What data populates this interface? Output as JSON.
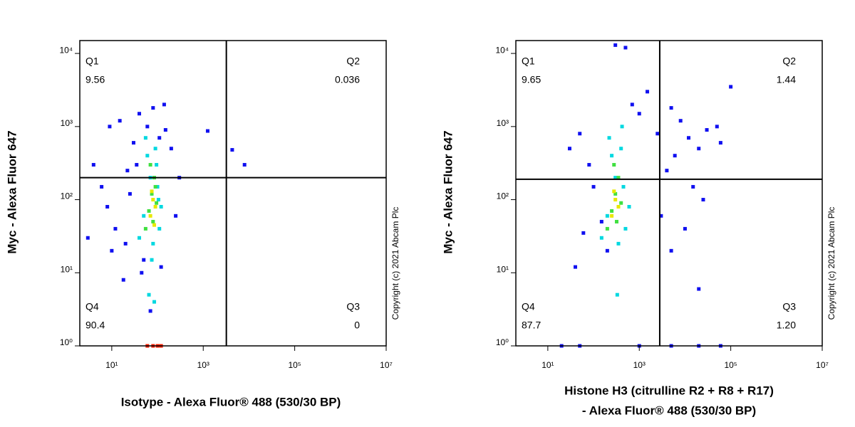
{
  "chart_data": [
    {
      "type": "scatter",
      "x_scale": "log",
      "y_scale": "log",
      "ylabel": "Myc - Alexa Fluor 647",
      "xlabel": [
        "Isotype - Alexa Fluor® 488 (530/30 BP)"
      ],
      "copyright": "Copyright (c) 2021 Abcam Plc",
      "xlim": [
        2,
        10000000
      ],
      "ylim": [
        1,
        15000
      ],
      "xticks": [
        {
          "value": 10,
          "label": "10¹"
        },
        {
          "value": 1000,
          "label": "10³"
        },
        {
          "value": 100000,
          "label": "10⁵"
        },
        {
          "value": 10000000,
          "label": "10⁷"
        }
      ],
      "yticks": [
        {
          "value": 1,
          "label": "10⁰"
        },
        {
          "value": 10,
          "label": "10¹"
        },
        {
          "value": 100,
          "label": "10²"
        },
        {
          "value": 1000,
          "label": "10³"
        },
        {
          "value": 10000,
          "label": "10⁴"
        }
      ],
      "gates": {
        "x": 3200,
        "y": 200,
        "labels": [
          "Q1",
          "Q2",
          "Q3",
          "Q4"
        ],
        "values": [
          9.56,
          0.036,
          0,
          90.4
        ],
        "value_labels": [
          "9.56",
          "0.036",
          "0",
          "90.4"
        ]
      },
      "series": [
        {
          "color": "#1010f0",
          "x": [
            4,
            6,
            8,
            12,
            20,
            30,
            15,
            40,
            60,
            150,
            200,
            300,
            10,
            25,
            9,
            50,
            120,
            250,
            18,
            80,
            35,
            110,
            4300,
            8000,
            1250,
            45,
            70,
            3,
            140,
            22
          ],
          "y": [
            300,
            150,
            80,
            40,
            25,
            600,
            1200,
            1500,
            1000,
            900,
            500,
            200,
            20,
            120,
            1000,
            15,
            12,
            60,
            8,
            1800,
            300,
            700,
            480,
            300,
            870,
            10,
            3,
            30,
            2000,
            250
          ]
        },
        {
          "color": "#00d8e0",
          "x": [
            40,
            50,
            60,
            70,
            80,
            90,
            100,
            110,
            120,
            55,
            75,
            95,
            65,
            85,
            105
          ],
          "y": [
            30,
            60,
            400,
            200,
            25,
            500,
            150,
            40,
            80,
            700,
            15,
            300,
            5,
            4,
            100
          ]
        },
        {
          "color": "#40e040",
          "x": [
            55,
            65,
            75,
            85,
            95,
            70,
            80,
            90
          ],
          "y": [
            40,
            70,
            120,
            200,
            90,
            300,
            50,
            150
          ]
        },
        {
          "color": "#e8e800",
          "x": [
            70,
            80,
            90,
            75,
            85
          ],
          "y": [
            60,
            100,
            80,
            130,
            45
          ]
        },
        {
          "color": "#ff2000",
          "x": [
            60,
            80,
            100,
            120
          ],
          "y": [
            1,
            1,
            1,
            1
          ]
        }
      ]
    },
    {
      "type": "scatter",
      "x_scale": "log",
      "y_scale": "log",
      "ylabel": "Myc - Alexa Fluor 647",
      "xlabel": [
        "Histone H3 (citrulline R2 + R8 + R17)",
        "- Alexa Fluor® 488 (530/30 BP)"
      ],
      "copyright": "Copyright (c) 2021 Abcam Plc",
      "xlim": [
        2,
        10000000
      ],
      "ylim": [
        1,
        15000
      ],
      "xticks": [
        {
          "value": 10,
          "label": "10¹"
        },
        {
          "value": 1000,
          "label": "10³"
        },
        {
          "value": 100000,
          "label": "10⁵"
        },
        {
          "value": 10000000,
          "label": "10⁷"
        }
      ],
      "yticks": [
        {
          "value": 1,
          "label": "10⁰"
        },
        {
          "value": 10,
          "label": "10¹"
        },
        {
          "value": 100,
          "label": "10²"
        },
        {
          "value": 1000,
          "label": "10³"
        },
        {
          "value": 10000,
          "label": "10⁴"
        }
      ],
      "gates": {
        "x": 2800,
        "y": 190,
        "labels": [
          "Q1",
          "Q2",
          "Q3",
          "Q4"
        ],
        "values": [
          9.65,
          1.44,
          1.2,
          87.7
        ],
        "value_labels": [
          "9.65",
          "1.44",
          "1.20",
          "87.7"
        ]
      },
      "series": [
        {
          "color": "#1010f0",
          "x": [
            30,
            50,
            80,
            100,
            150,
            200,
            700,
            1000,
            1500,
            5000,
            8000,
            12000,
            20000,
            30000,
            50000,
            60000,
            100000,
            4000,
            6000,
            15000,
            3000,
            5000,
            20000,
            40,
            60,
            300,
            500,
            2500,
            10000,
            25000
          ],
          "y": [
            500,
            800,
            300,
            150,
            50,
            20,
            2000,
            1500,
            3000,
            1800,
            1200,
            700,
            500,
            900,
            1000,
            600,
            3500,
            250,
            400,
            150,
            60,
            20,
            6,
            12,
            35,
            13000,
            12000,
            800,
            40,
            100
          ]
        },
        {
          "color": "#1010f0",
          "x": [
            20,
            50,
            1000,
            5000,
            20000,
            60000
          ],
          "y": [
            1,
            1,
            1,
            1,
            1,
            1
          ]
        },
        {
          "color": "#00d8e0",
          "x": [
            150,
            200,
            250,
            300,
            350,
            400,
            450,
            500,
            600,
            220,
            330,
            420
          ],
          "y": [
            30,
            60,
            400,
            200,
            25,
            500,
            150,
            40,
            80,
            700,
            5,
            1000
          ]
        },
        {
          "color": "#40e040",
          "x": [
            200,
            250,
            300,
            350,
            400,
            280,
            320
          ],
          "y": [
            40,
            70,
            120,
            200,
            90,
            300,
            50
          ]
        },
        {
          "color": "#e8e800",
          "x": [
            250,
            300,
            350,
            280
          ],
          "y": [
            60,
            100,
            80,
            130
          ]
        }
      ]
    }
  ]
}
